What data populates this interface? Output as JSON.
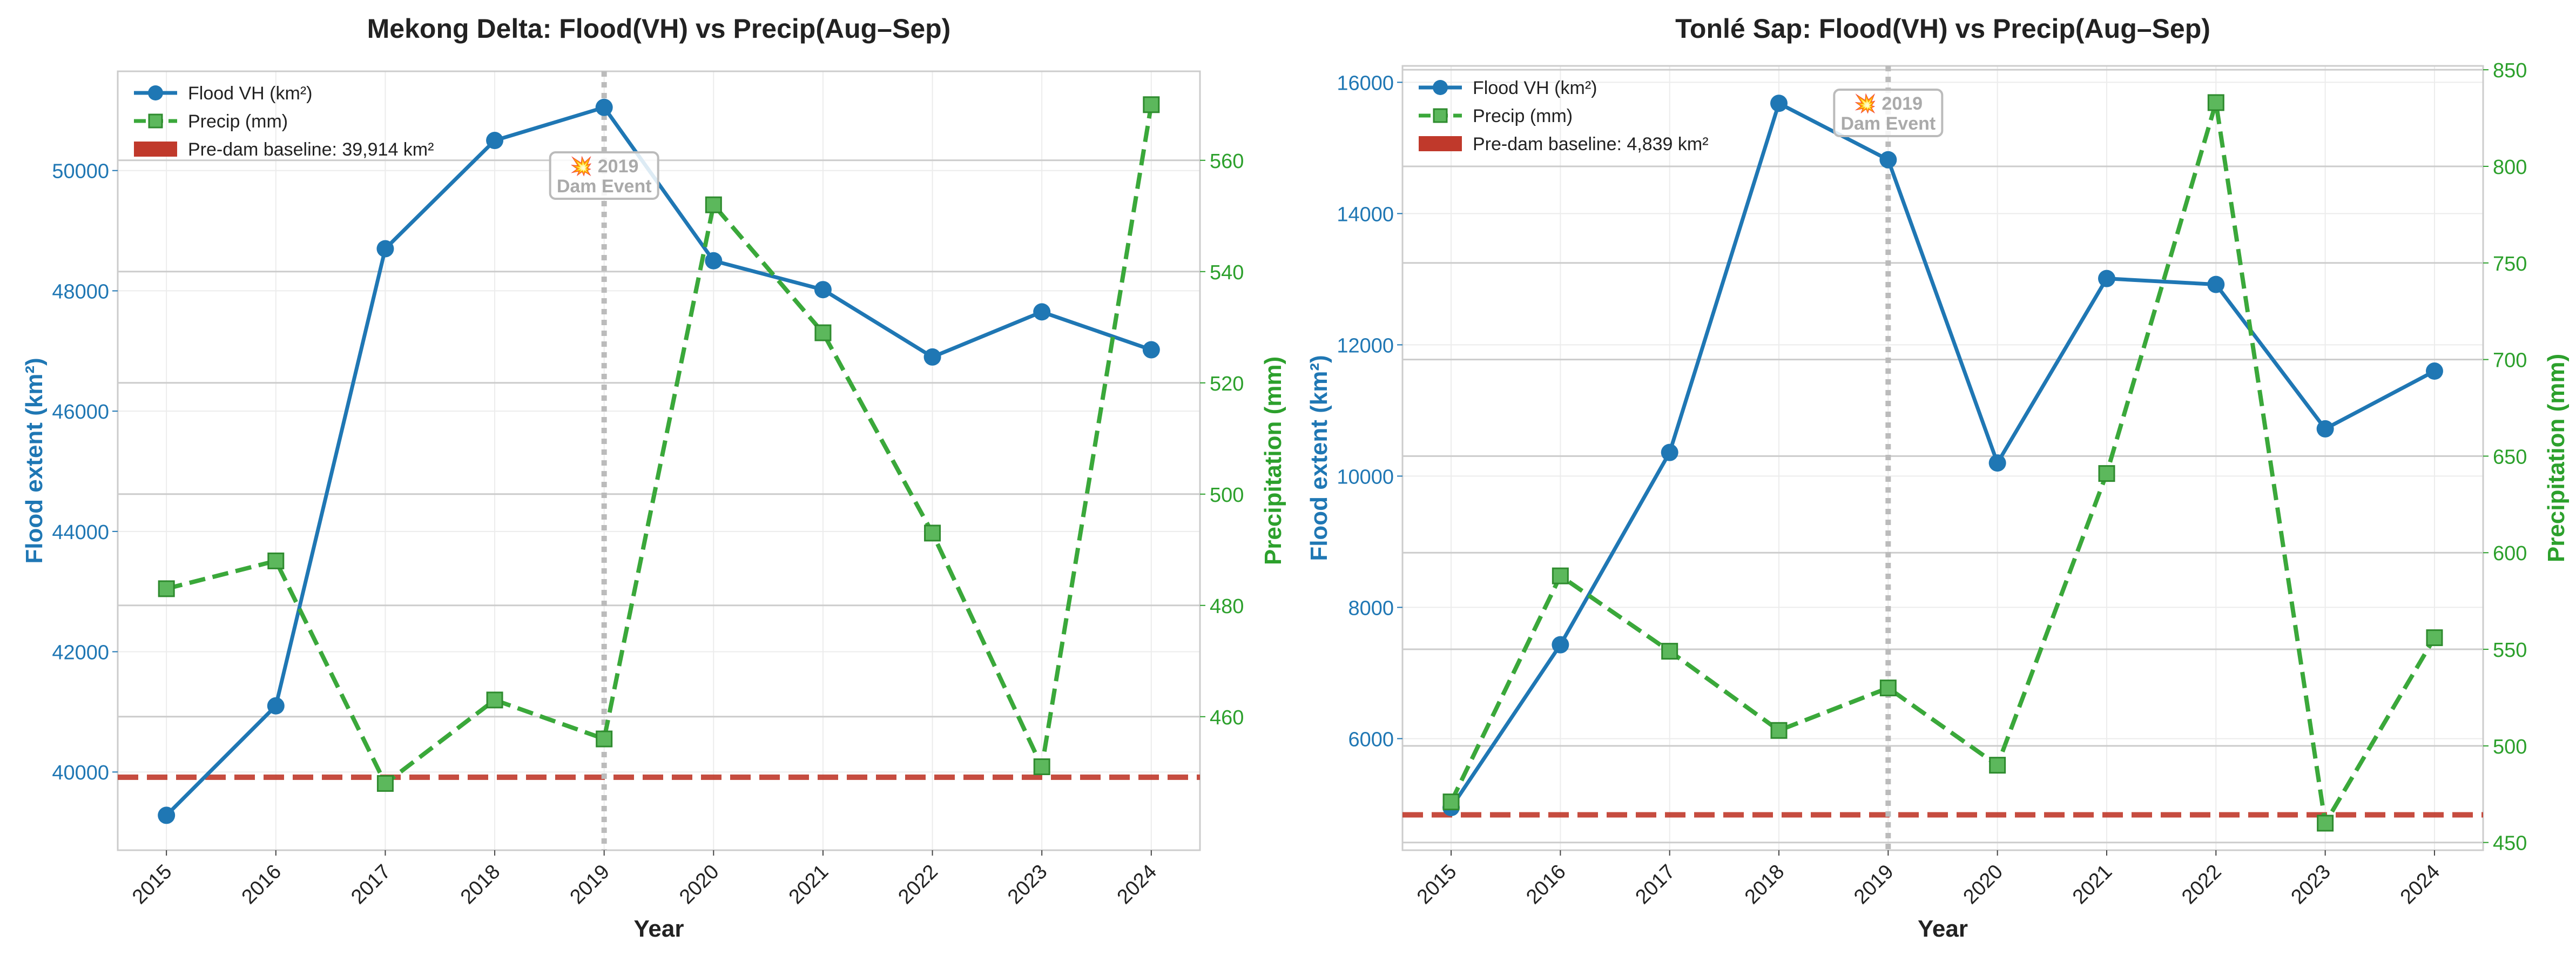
{
  "chart_data": [
    {
      "type": "line",
      "title": "Mekong Delta: Flood(VH) vs Precip(Aug–Sep)",
      "xlabel": "Year",
      "ylabel": "Flood extent (km²)",
      "y2label": "Precipitation (mm)",
      "x": [
        "2015",
        "2016",
        "2017",
        "2018",
        "2019",
        "2020",
        "2021",
        "2022",
        "2023",
        "2024"
      ],
      "ylim": [
        38700,
        51650
      ],
      "y2lim": [
        436,
        576
      ],
      "yticks": [
        40000,
        42000,
        44000,
        46000,
        48000,
        50000
      ],
      "y2ticks": [
        460,
        480,
        500,
        520,
        540,
        560
      ],
      "series": [
        {
          "name": "Flood VH (km²)",
          "axis": "left",
          "style": "solid",
          "marker": "circle",
          "color": "#1f77b4",
          "values": [
            39280,
            41100,
            48700,
            50500,
            51050,
            48500,
            48020,
            46900,
            47650,
            47020
          ]
        },
        {
          "name": "Precip (mm)",
          "axis": "right",
          "style": "dashed",
          "marker": "square",
          "color": "#3aa83a",
          "values": [
            483,
            488,
            448,
            463,
            456,
            552,
            529,
            493,
            451,
            570
          ]
        }
      ],
      "baseline": {
        "name": "Pre-dam baseline: 39,914 km²",
        "value": 39914,
        "color": "#c0392b"
      },
      "event": {
        "x": "2019",
        "label_line1": "💥 2019",
        "label_line2": "Dam Event"
      },
      "right_axis_gridlines": true,
      "grid": true,
      "legend": "top-left"
    },
    {
      "type": "line",
      "title": "Tonlé Sap: Flood(VH) vs Precip(Aug–Sep)",
      "xlabel": "Year",
      "ylabel": "Flood extent (km²)",
      "y2label": "Precipitation (mm)",
      "x": [
        "2015",
        "2016",
        "2017",
        "2018",
        "2019",
        "2020",
        "2021",
        "2022",
        "2023",
        "2024"
      ],
      "ylim": [
        4300,
        16250
      ],
      "y2lim": [
        446,
        852
      ],
      "yticks": [
        6000,
        8000,
        10000,
        12000,
        14000,
        16000
      ],
      "y2ticks": [
        450,
        500,
        550,
        600,
        650,
        700,
        750,
        800,
        850
      ],
      "series": [
        {
          "name": "Flood VH (km²)",
          "axis": "left",
          "style": "solid",
          "marker": "circle",
          "color": "#1f77b4",
          "values": [
            4950,
            7430,
            10360,
            15680,
            14820,
            10200,
            13010,
            12920,
            10720,
            11600
          ]
        },
        {
          "name": "Precip (mm)",
          "axis": "right",
          "style": "dashed",
          "marker": "square",
          "color": "#3aa83a",
          "values": [
            471,
            588,
            549,
            508,
            530,
            490,
            641,
            833,
            460,
            556
          ]
        }
      ],
      "baseline": {
        "name": "Pre-dam baseline: 4,839 km²",
        "value": 4839,
        "color": "#c0392b"
      },
      "event": {
        "x": "2019",
        "label_line1": "💥 2019",
        "label_line2": "Dam Event"
      },
      "right_axis_gridlines": true,
      "grid": true,
      "legend": "top-left"
    }
  ]
}
